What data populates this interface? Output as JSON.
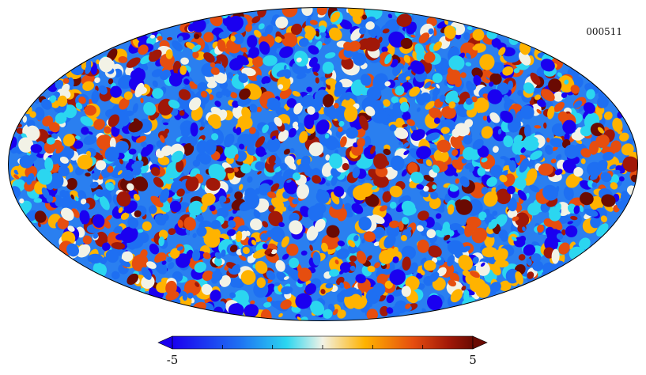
{
  "map": {
    "label": "000511",
    "projection": "mollweide",
    "field": "sky-fluctuation-map"
  },
  "colorbar": {
    "min_label": "-5",
    "max_label": "5",
    "min": -5,
    "max": 5,
    "colors": [
      "#1a00f0",
      "#1e6ff2",
      "#2bd6f0",
      "#f2f2e6",
      "#ffb300",
      "#e64e0f",
      "#a11808",
      "#6a0a02"
    ]
  }
}
